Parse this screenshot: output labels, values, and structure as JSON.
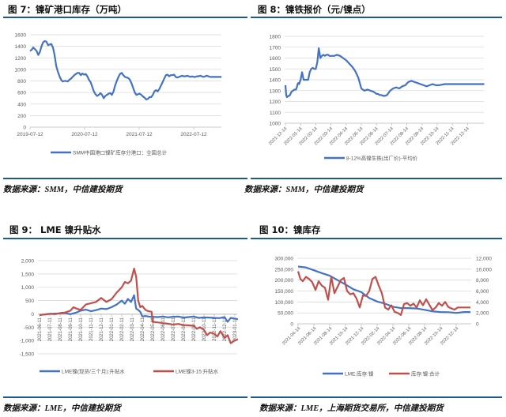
{
  "colors": {
    "blue": "#4472c4",
    "red": "#c0504d",
    "rule": "#1f5a8a",
    "grid": "#d9d9d9"
  },
  "figures": [
    {
      "title": "图 7：镍矿港口库存（万吨）",
      "source": "数据来源：SMM，中信建投期货"
    },
    {
      "title": "图 8：镍铁报价（元/镍点）",
      "source": "数据来源：SMM，中信建投期货"
    },
    {
      "title": "图 9： LME 镍升贴水",
      "source": "数据来源：LME，中信建投期货"
    },
    {
      "title": "图 10：镍库存",
      "source": "数据来源：LME，上海期货交易所，中信建投期货"
    }
  ],
  "chart_data": [
    {
      "type": "line",
      "title": "镍矿港口库存（万吨）",
      "xlabel": "",
      "ylabel": "",
      "ylim": [
        0,
        1600
      ],
      "yticks": [
        0,
        200,
        400,
        600,
        800,
        1000,
        1200,
        1400,
        1600
      ],
      "xticks": [
        "2019-07-12",
        "2020-07-12",
        "2021-07-12",
        "2022-07-12"
      ],
      "grid": true,
      "legend_position": "bottom",
      "series": [
        {
          "name": "SMM中国港口镍矿库存分港口：全国总计",
          "color": "#4472c4",
          "x": [
            0,
            0.03,
            0.06,
            0.09,
            0.12,
            0.15,
            0.18,
            0.21,
            0.24,
            0.27,
            0.3,
            0.33,
            0.36,
            0.39,
            0.42,
            0.45,
            0.48,
            0.51,
            0.54,
            0.57,
            0.6,
            0.63,
            0.66,
            0.69,
            0.72,
            0.75,
            0.78,
            0.81,
            0.84,
            0.87,
            0.9,
            0.93,
            0.96,
            0.99,
            1.02,
            1.05,
            1.08,
            1.11,
            1.14,
            1.17,
            1.2,
            1.23,
            1.26,
            1.29,
            1.32,
            1.35,
            1.38,
            1.41,
            1.44,
            1.47,
            1.5,
            1.53,
            1.56,
            1.59,
            1.62,
            1.65,
            1.68,
            1.71,
            1.74,
            1.77,
            1.8,
            1.83,
            1.86,
            1.89,
            1.92,
            1.95,
            1.98,
            2.01,
            2.04,
            2.07,
            2.1,
            2.13,
            2.16,
            2.19,
            2.22,
            2.25,
            2.28,
            2.31,
            2.34,
            2.37,
            2.4,
            2.43,
            2.46,
            2.49,
            2.52,
            2.55,
            2.58,
            2.61,
            2.64,
            2.67,
            2.7,
            2.73,
            2.76,
            2.79,
            2.82,
            2.85,
            2.88,
            2.91,
            2.94,
            2.97,
            3.0,
            3.03,
            3.06,
            3.09,
            3.12,
            3.15,
            3.18,
            3.21,
            3.24,
            3.27,
            3.3,
            3.33,
            3.36,
            3.39,
            3.42,
            3.45,
            3.48,
            3.51
          ],
          "values": [
            1320,
            1340,
            1380,
            1350,
            1320,
            1250,
            1300,
            1400,
            1470,
            1490,
            1480,
            1420,
            1430,
            1440,
            1380,
            1250,
            1060,
            960,
            880,
            820,
            790,
            800,
            800,
            790,
            820,
            840,
            870,
            900,
            920,
            940,
            940,
            900,
            930,
            910,
            920,
            880,
            820,
            780,
            700,
            620,
            570,
            540,
            560,
            590,
            560,
            500,
            540,
            560,
            580,
            590,
            560,
            620,
            720,
            800,
            870,
            920,
            940,
            900,
            870,
            860,
            850,
            820,
            760,
            680,
            600,
            560,
            570,
            580,
            560,
            530,
            510,
            480,
            490,
            520,
            520,
            560,
            620,
            640,
            620,
            660,
            720,
            780,
            840,
            900,
            910,
            880,
            900,
            900,
            910,
            870,
            860,
            870,
            880,
            890,
            880,
            880,
            890,
            880,
            870,
            880,
            870,
            870,
            880,
            880,
            890,
            880,
            870,
            880,
            890,
            880,
            870,
            870,
            870,
            870,
            870,
            870,
            870,
            870
          ]
        }
      ]
    },
    {
      "type": "line",
      "title": "镍铁报价（元/镍点）",
      "xlabel": "",
      "ylabel": "",
      "ylim": [
        1000,
        1800
      ],
      "yticks": [
        1000,
        1100,
        1200,
        1300,
        1400,
        1500,
        1600,
        1700,
        1800
      ],
      "xticks": [
        "2021-12-14",
        "2022-01-14",
        "2022-02-14",
        "2022-03-14",
        "2022-04-14",
        "2022-05-14",
        "2022-06-14",
        "2022-07-14",
        "2022-08-14",
        "2022-09-14",
        "2022-10-14",
        "2022-11-14",
        "2022-12-14"
      ],
      "grid": true,
      "legend_position": "bottom",
      "series": [
        {
          "name": "8-12%高镍生铁(出厂价)-平均价",
          "color": "#4472c4",
          "x": [
            0,
            0.05,
            0.1,
            0.2,
            0.3,
            0.4,
            0.5,
            0.6,
            0.7,
            0.75,
            0.8,
            0.85,
            0.9,
            1.0,
            1.1,
            1.2,
            1.3,
            1.4,
            1.5,
            1.6,
            1.7,
            1.8,
            1.9,
            2.0,
            2.1,
            2.2,
            2.3,
            2.4,
            2.5,
            2.6,
            2.7,
            2.8,
            2.9,
            3.0,
            3.2,
            3.4,
            3.6,
            3.8,
            4.0,
            4.2,
            4.4,
            4.6,
            4.8,
            5.0,
            5.2,
            5.4,
            5.6,
            5.8,
            6.0,
            6.1,
            6.2,
            6.3,
            6.5,
            6.7,
            6.9,
            7.1,
            7.3,
            7.5,
            7.7,
            7.9,
            8.1,
            8.3,
            8.5,
            8.7,
            8.9,
            9.1,
            9.3,
            9.5,
            9.7,
            9.9,
            10.1,
            10.3,
            10.5,
            10.7,
            10.9,
            11.1,
            11.3,
            11.5,
            11.7,
            11.9,
            12.1,
            12.3,
            12.5,
            12.7,
            12.9,
            13.1
          ],
          "values": [
            1350,
            1260,
            1240,
            1250,
            1260,
            1290,
            1300,
            1310,
            1310,
            1330,
            1360,
            1370,
            1360,
            1400,
            1470,
            1400,
            1400,
            1400,
            1400,
            1470,
            1500,
            1510,
            1500,
            1500,
            1560,
            1690,
            1600,
            1620,
            1630,
            1620,
            1630,
            1630,
            1620,
            1620,
            1620,
            1630,
            1620,
            1600,
            1580,
            1550,
            1520,
            1480,
            1420,
            1320,
            1300,
            1310,
            1300,
            1290,
            1270,
            1270,
            1260,
            1260,
            1250,
            1260,
            1300,
            1320,
            1330,
            1320,
            1340,
            1350,
            1380,
            1390,
            1380,
            1370,
            1360,
            1350,
            1340,
            1350,
            1360,
            1350,
            1350,
            1355,
            1360,
            1360,
            1360,
            1360,
            1360,
            1360,
            1360,
            1360,
            1360,
            1360,
            1360,
            1360,
            1360,
            1360
          ]
        }
      ]
    },
    {
      "type": "line",
      "title": "LME 镍升贴水",
      "xlabel": "",
      "ylabel": "",
      "ylim": [
        -1500,
        2000
      ],
      "yticks": [
        -1500,
        -1000,
        -500,
        0,
        500,
        1000,
        1500,
        2000
      ],
      "xticks": [
        "2021-06-11",
        "2021-07-11",
        "2021-08-11",
        "2021-09-11",
        "2021-10-11",
        "2021-11-11",
        "2021-12-11",
        "2022-01-11",
        "2022-02-11",
        "2022-03-11",
        "2022-04-11",
        "2022-05-11",
        "2022-06-11",
        "2022-07-11",
        "2022-08-11",
        "2022-09-11",
        "2022-10-11",
        "2022-11-11",
        "2022-12-11",
        "2023-01-11"
      ],
      "grid": true,
      "legend_position": "bottom",
      "series": [
        {
          "name": "LME镍(现货/三个月):升贴水",
          "color": "#4472c4",
          "x": [
            0,
            0.5,
            1,
            1.5,
            2,
            2.5,
            3,
            3.5,
            4,
            4.5,
            5,
            5.5,
            6,
            6.5,
            7,
            7.5,
            8,
            8.3,
            8.6,
            8.9,
            9.2,
            9.4,
            9.6,
            9.8,
            10,
            10.3,
            10.6,
            11,
            11.5,
            12,
            12.5,
            13,
            13.5,
            14,
            14.5,
            15,
            15.5,
            16,
            16.5,
            17,
            17.5,
            18,
            18.3,
            18.6,
            19,
            19.3
          ],
          "values": [
            -50,
            -20,
            0,
            10,
            20,
            30,
            -10,
            40,
            120,
            160,
            100,
            140,
            200,
            180,
            250,
            350,
            500,
            380,
            560,
            450,
            700,
            200,
            150,
            80,
            -100,
            -80,
            -100,
            -110,
            -120,
            -100,
            -130,
            -110,
            -100,
            -140,
            -120,
            -100,
            -150,
            -130,
            -140,
            -150,
            -160,
            -120,
            -300,
            -150,
            -180,
            -200
          ]
        },
        {
          "name": "LME镍3-15:升贴水",
          "color": "#c0504d",
          "x": [
            0,
            0.5,
            1,
            1.5,
            2,
            2.5,
            3,
            3.3,
            3.6,
            4,
            4.5,
            5,
            5.5,
            6,
            6.5,
            7,
            7.5,
            8,
            8.3,
            8.6,
            8.9,
            9.2,
            9.4,
            9.6,
            9.8,
            10,
            10.3,
            10.6,
            10.9,
            11,
            11.5,
            12,
            12.5,
            13,
            13.5,
            14,
            14.5,
            15,
            15.3,
            15.6,
            16,
            16.3,
            16.6,
            17,
            17.3,
            17.6,
            18,
            18.3,
            18.6,
            19,
            19.3
          ],
          "values": [
            -50,
            -20,
            0,
            -10,
            30,
            50,
            120,
            250,
            200,
            150,
            350,
            400,
            450,
            600,
            450,
            550,
            800,
            1000,
            1200,
            1150,
            1250,
            1700,
            1400,
            500,
            250,
            300,
            150,
            100,
            80,
            -300,
            -320,
            -350,
            -370,
            -400,
            -380,
            -420,
            -430,
            -450,
            -560,
            -500,
            -600,
            -800,
            -700,
            -750,
            -850,
            -650,
            -900,
            -800,
            -1100,
            -1000,
            -950
          ]
        }
      ]
    },
    {
      "type": "line",
      "title": "镍库存",
      "xlabel": "",
      "ylabel": "",
      "ylim_left": [
        0,
        300000
      ],
      "ylim_right": [
        0,
        12000
      ],
      "yticks_left": [
        0,
        50000,
        100000,
        150000,
        200000,
        250000,
        300000
      ],
      "yticks_right": [
        0,
        2000,
        4000,
        6000,
        8000,
        10000,
        12000
      ],
      "xticks": [
        "2021-04-14",
        "2021-06-14",
        "2021-08-14",
        "2021-10-14",
        "2021-12-14",
        "2022-02-14",
        "2022-04-14",
        "2022-06-14",
        "2022-08-14",
        "2022-10-14",
        "2022-12-14"
      ],
      "grid": true,
      "legend_position": "bottom",
      "series": [
        {
          "name": "LME:库存:镍",
          "color": "#4472c4",
          "axis": "left",
          "x": [
            0,
            0.5,
            1,
            1.5,
            2,
            2.5,
            3,
            3.5,
            4,
            4.5,
            5,
            5.5,
            6,
            6.5,
            7,
            7.5,
            8,
            8.5,
            9,
            9.5,
            10,
            10.5,
            10.9
          ],
          "values": [
            262000,
            258000,
            245000,
            232000,
            220000,
            200000,
            180000,
            158000,
            145000,
            118000,
            102000,
            92000,
            78000,
            72000,
            72000,
            70000,
            64000,
            57000,
            54000,
            53000,
            50000,
            54000,
            54000
          ]
        },
        {
          "name": "库存:镍:合计",
          "color": "#c0504d",
          "axis": "right",
          "x": [
            0,
            0.15,
            0.3,
            0.5,
            0.7,
            0.9,
            1.1,
            1.3,
            1.5,
            1.7,
            1.9,
            2.1,
            2.3,
            2.5,
            2.7,
            2.9,
            3.1,
            3.3,
            3.5,
            3.7,
            3.9,
            4.1,
            4.3,
            4.5,
            4.7,
            4.9,
            5.1,
            5.3,
            5.5,
            5.7,
            5.9,
            6.1,
            6.3,
            6.5,
            6.7,
            6.9,
            7.1,
            7.3,
            7.5,
            7.7,
            7.9,
            8.1,
            8.3,
            8.5,
            8.7,
            8.9,
            9.1,
            9.3,
            9.5,
            9.7,
            9.9,
            10.1,
            10.3,
            10.5,
            10.7,
            10.9
          ],
          "values": [
            9600,
            8200,
            7800,
            8600,
            8200,
            7600,
            6200,
            7800,
            7000,
            6600,
            4400,
            8600,
            5600,
            6800,
            8000,
            8400,
            6000,
            5400,
            5600,
            4600,
            3000,
            5200,
            5100,
            6000,
            8200,
            8600,
            7000,
            5600,
            3000,
            2600,
            3400,
            2200,
            2000,
            1600,
            3600,
            3800,
            3300,
            3700,
            3000,
            4300,
            3400,
            4500,
            3500,
            2500,
            3000,
            3800,
            3300,
            4000,
            3100,
            2800,
            2600,
            3000,
            3000,
            3000,
            3000,
            3000
          ]
        }
      ]
    }
  ]
}
